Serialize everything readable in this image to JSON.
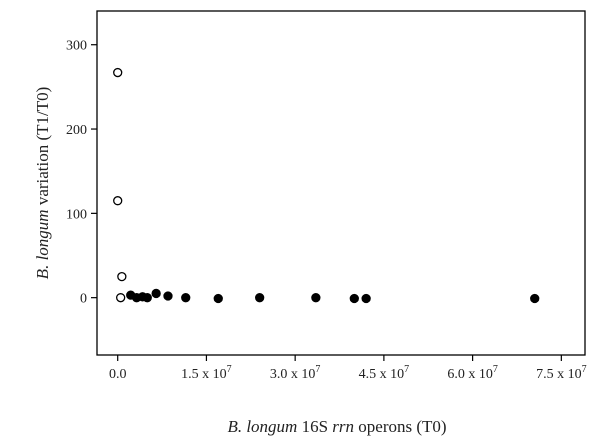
{
  "chart_data": {
    "type": "scatter",
    "title": "",
    "xlabel_parts": [
      {
        "text": "B. longum",
        "italic": true
      },
      {
        "text": " 16S ",
        "italic": false
      },
      {
        "text": "rrn",
        "italic": true
      },
      {
        "text": " operons (T0)",
        "italic": false
      }
    ],
    "ylabel_parts": [
      {
        "text": "B. longum",
        "italic": true
      },
      {
        "text": " variation (T1/T0)",
        "italic": false
      }
    ],
    "xlim": [
      -3500000.0,
      79000000.0
    ],
    "ylim": [
      -68,
      340
    ],
    "x_ticks": [
      {
        "value": 0,
        "mantissa": "0.0",
        "exponent": ""
      },
      {
        "value": 15000000.0,
        "mantissa": "1.5 x 10",
        "exponent": "7"
      },
      {
        "value": 30000000.0,
        "mantissa": "3.0 x 10",
        "exponent": "7"
      },
      {
        "value": 45000000.0,
        "mantissa": "4.5 x 10",
        "exponent": "7"
      },
      {
        "value": 60000000.0,
        "mantissa": "6.0 x 10",
        "exponent": "7"
      },
      {
        "value": 75000000.0,
        "mantissa": "7.5 x 10",
        "exponent": "7"
      }
    ],
    "y_ticks": [
      0,
      100,
      200,
      300
    ],
    "series": [
      {
        "marker": "open-circle",
        "color": "#000000",
        "points": [
          {
            "x": 0,
            "y": 267
          },
          {
            "x": 0,
            "y": 115
          },
          {
            "x": 700000.0,
            "y": 25
          },
          {
            "x": 500000.0,
            "y": 0
          }
        ]
      },
      {
        "marker": "filled-circle",
        "color": "#000000",
        "points": [
          {
            "x": 2200000.0,
            "y": 3
          },
          {
            "x": 3200000.0,
            "y": 0
          },
          {
            "x": 4200000.0,
            "y": 1
          },
          {
            "x": 5000000.0,
            "y": 0
          },
          {
            "x": 6500000.0,
            "y": 5
          },
          {
            "x": 8500000.0,
            "y": 2
          },
          {
            "x": 11500000.0,
            "y": 0
          },
          {
            "x": 17000000.0,
            "y": -1
          },
          {
            "x": 24000000.0,
            "y": 0
          },
          {
            "x": 33500000.0,
            "y": 0
          },
          {
            "x": 40000000.0,
            "y": -1
          },
          {
            "x": 42000000.0,
            "y": -1
          },
          {
            "x": 70500000.0,
            "y": -1
          }
        ]
      }
    ]
  }
}
